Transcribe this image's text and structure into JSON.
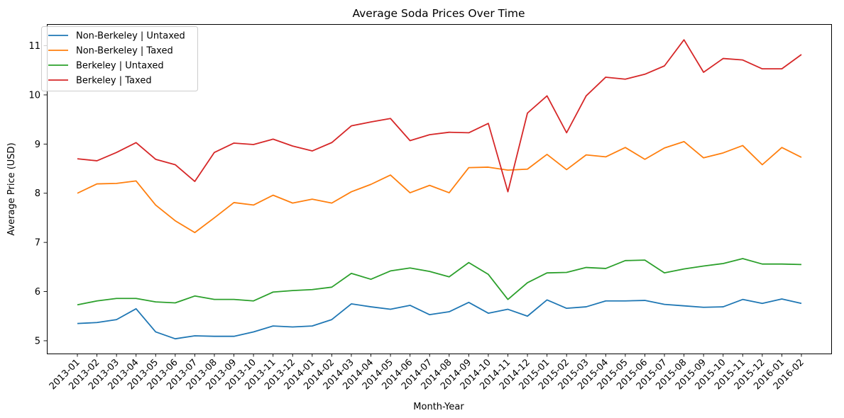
{
  "chart_data": {
    "type": "line",
    "title": "Average Soda Prices Over Time",
    "xlabel": "Month-Year",
    "ylabel": "Average Price (USD)",
    "ylim": [
      4.74,
      11.44
    ],
    "yticks": [
      5,
      6,
      7,
      8,
      9,
      10,
      11
    ],
    "grid": false,
    "legend_position": "top-left",
    "categories": [
      "2013-01",
      "2013-02",
      "2013-03",
      "2013-04",
      "2013-05",
      "2013-06",
      "2013-07",
      "2013-08",
      "2013-09",
      "2013-10",
      "2013-11",
      "2013-12",
      "2014-01",
      "2014-02",
      "2014-03",
      "2014-04",
      "2014-05",
      "2014-06",
      "2014-07",
      "2014-08",
      "2014-09",
      "2014-10",
      "2014-11",
      "2014-12",
      "2015-01",
      "2015-02",
      "2015-03",
      "2015-04",
      "2015-05",
      "2015-06",
      "2015-07",
      "2015-08",
      "2015-09",
      "2015-10",
      "2015-11",
      "2015-12",
      "2016-01",
      "2016-02"
    ],
    "series": [
      {
        "name": "Non-Berkeley | Untaxed",
        "color": "#1f77b4",
        "values": [
          5.35,
          5.37,
          5.43,
          5.65,
          5.18,
          5.04,
          5.1,
          5.09,
          5.09,
          5.18,
          5.3,
          5.28,
          5.3,
          5.43,
          5.75,
          5.69,
          5.64,
          5.72,
          5.53,
          5.59,
          5.78,
          5.56,
          5.64,
          5.5,
          5.83,
          5.66,
          5.69,
          5.81,
          5.81,
          5.82,
          5.74,
          5.71,
          5.68,
          5.69,
          5.84,
          5.76,
          5.85,
          5.76
        ]
      },
      {
        "name": "Non-Berkeley | Taxed",
        "color": "#ff7f0e",
        "values": [
          8.0,
          8.19,
          8.2,
          8.25,
          7.76,
          7.44,
          7.2,
          7.5,
          7.81,
          7.76,
          7.96,
          7.8,
          7.88,
          7.8,
          8.03,
          8.18,
          8.37,
          8.01,
          8.16,
          8.01,
          8.52,
          8.53,
          8.47,
          8.49,
          8.79,
          8.48,
          8.78,
          8.74,
          8.93,
          8.69,
          8.92,
          9.05,
          8.72,
          8.82,
          8.97,
          8.58,
          8.93,
          8.73
        ]
      },
      {
        "name": "Berkeley | Untaxed",
        "color": "#2ca02c",
        "values": [
          5.73,
          5.81,
          5.86,
          5.86,
          5.79,
          5.77,
          5.91,
          5.84,
          5.84,
          5.81,
          5.99,
          6.02,
          6.04,
          6.09,
          6.37,
          6.25,
          6.42,
          6.48,
          6.41,
          6.3,
          6.59,
          6.35,
          5.84,
          6.18,
          6.38,
          6.39,
          6.49,
          6.47,
          6.63,
          6.64,
          6.38,
          6.46,
          6.52,
          6.57,
          6.67,
          6.56,
          6.56,
          6.55
        ]
      },
      {
        "name": "Berkeley | Taxed",
        "color": "#d62728",
        "values": [
          8.7,
          8.66,
          8.83,
          9.03,
          8.69,
          8.58,
          8.24,
          8.83,
          9.02,
          8.99,
          9.1,
          8.96,
          8.86,
          9.03,
          9.37,
          9.45,
          9.52,
          9.07,
          9.19,
          9.24,
          9.23,
          9.42,
          8.03,
          9.63,
          9.98,
          9.23,
          9.98,
          10.36,
          10.32,
          10.42,
          10.59,
          11.12,
          10.46,
          10.74,
          10.71,
          10.53,
          10.53,
          10.82
        ]
      }
    ]
  }
}
